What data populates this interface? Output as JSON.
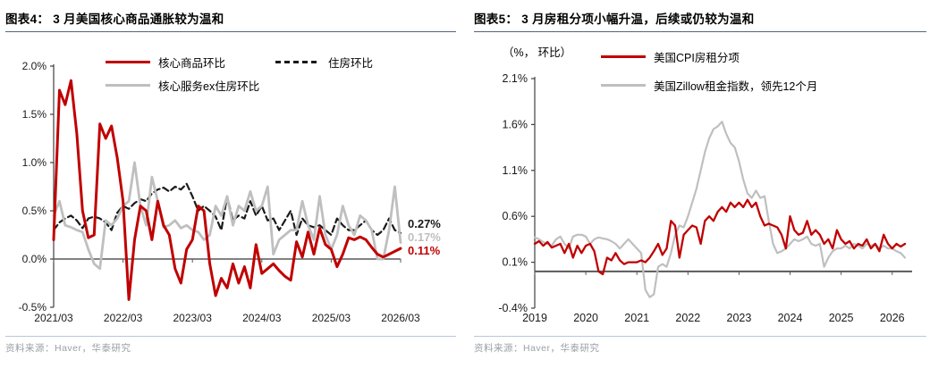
{
  "panels": [
    {
      "id": "fig4",
      "source": "资料来源：Haver，华泰研究"
    },
    {
      "id": "fig5",
      "source": "资料来源：Haver，华泰研究",
      "unit_label": "（%， 环比）"
    }
  ],
  "colors": {
    "series_red": "#c00000",
    "series_gray": "#bfbfbf",
    "series_black": "#1a1a1a",
    "title_rule": "#53677a",
    "source_rule": "#b7c7dc",
    "source_text": "#9aa0a6"
  },
  "chart_data": [
    {
      "id": "fig4",
      "type": "line",
      "title": "图表4： 3 月美国核心商品通胀较为温和",
      "x_start": "2021/03",
      "x_end": "2026/03",
      "freq": "monthly",
      "xticks": [
        "2021/03",
        "2022/03",
        "2023/03",
        "2024/03",
        "2025/03",
        "2026/03"
      ],
      "yticks": [
        "2.0%",
        "1.5%",
        "1.0%",
        "0.5%",
        "0.0%",
        "-0.5%"
      ],
      "ylim": [
        -0.5,
        2.0
      ],
      "legend_position": "top-inside",
      "grid": false,
      "series": [
        {
          "name": "住房环比",
          "color": "#1a1a1a",
          "dash": true,
          "width": 2.2,
          "end_label": "0.27%",
          "values": [
            0.3,
            0.38,
            0.42,
            0.45,
            0.4,
            0.32,
            0.42,
            0.44,
            0.42,
            0.38,
            0.3,
            0.48,
            0.55,
            0.52,
            0.58,
            0.62,
            0.6,
            0.68,
            0.72,
            0.74,
            0.7,
            0.75,
            0.72,
            0.78,
            0.65,
            0.5,
            0.55,
            0.5,
            0.44,
            0.3,
            0.65,
            0.4,
            0.45,
            0.42,
            0.6,
            0.45,
            0.55,
            0.4,
            0.42,
            0.3,
            0.4,
            0.5,
            0.25,
            0.42,
            0.35,
            0.33,
            0.35,
            0.3,
            0.25,
            0.42,
            0.35,
            0.3,
            0.3,
            0.35,
            0.4,
            0.3,
            0.25,
            0.3,
            0.42,
            0.3,
            0.27
          ]
        },
        {
          "name": "核心服务ex住房环比",
          "color": "#bfbfbf",
          "dash": false,
          "width": 2.8,
          "end_label": "0.17%",
          "values": [
            0.45,
            0.6,
            0.35,
            0.33,
            0.3,
            0.28,
            0.1,
            -0.05,
            -0.1,
            0.4,
            0.35,
            0.42,
            0.55,
            0.6,
            1.0,
            0.55,
            0.35,
            0.85,
            0.6,
            0.33,
            0.35,
            0.4,
            0.32,
            0.35,
            0.3,
            0.28,
            0.2,
            0.25,
            0.55,
            0.45,
            0.65,
            0.35,
            0.55,
            0.5,
            0.7,
            0.5,
            0.55,
            0.75,
            0.05,
            0.2,
            0.25,
            0.3,
            0.3,
            0.6,
            0.35,
            0.2,
            0.65,
            0.25,
            0.1,
            0.25,
            0.55,
            0.35,
            0.25,
            0.45,
            0.4,
            0.3,
            0.0,
            0.0,
            0.3,
            0.75,
            0.17
          ]
        },
        {
          "name": "核心商品环比",
          "color": "#c00000",
          "dash": false,
          "width": 3,
          "end_label": "0.11%",
          "values": [
            0.2,
            1.75,
            1.6,
            1.85,
            1.3,
            0.5,
            0.22,
            0.25,
            1.4,
            1.25,
            1.38,
            1.05,
            0.6,
            -0.42,
            0.2,
            0.55,
            0.5,
            0.2,
            0.6,
            0.35,
            0.25,
            -0.1,
            -0.25,
            0.1,
            0.2,
            0.55,
            0.5,
            -0.05,
            -0.38,
            -0.2,
            -0.3,
            -0.05,
            -0.25,
            -0.08,
            -0.3,
            0.15,
            -0.15,
            -0.1,
            -0.05,
            -0.12,
            -0.18,
            -0.22,
            0.18,
            0.02,
            0.28,
            0.05,
            0.32,
            0.15,
            0.1,
            -0.08,
            0.05,
            0.22,
            0.2,
            0.23,
            0.2,
            0.12,
            0.05,
            0.02,
            0.05,
            0.08,
            0.11
          ]
        }
      ]
    },
    {
      "id": "fig5",
      "type": "line",
      "title": "图表5： 3 月房租分项小幅升温，后续或仍较为温和",
      "unit": "（%， 环比）",
      "x_start": "2019/01",
      "x_end": "2026/04",
      "freq": "monthly",
      "xticks": [
        "2019",
        "2020",
        "2021",
        "2022",
        "2023",
        "2024",
        "2025",
        "2026"
      ],
      "yticks": [
        "2.1%",
        "1.6%",
        "1.1%",
        "0.6%",
        "0.1%",
        "-0.4%"
      ],
      "ylim": [
        -0.4,
        2.1
      ],
      "legend_position": "top-inside",
      "grid": false,
      "series": [
        {
          "name": "美国Zillow租金指数，领先12个月",
          "color": "#bfbfbf",
          "dash": false,
          "width": 2.2,
          "values": [
            0.37,
            0.35,
            0.32,
            0.3,
            0.28,
            0.35,
            0.38,
            0.3,
            0.25,
            0.38,
            0.4,
            0.4,
            0.38,
            0.3,
            0.35,
            0.37,
            0.36,
            0.35,
            0.33,
            0.3,
            0.25,
            0.3,
            0.35,
            0.3,
            0.25,
            0.2,
            -0.2,
            -0.28,
            -0.25,
            0.05,
            0.08,
            0.05,
            0.2,
            0.4,
            0.5,
            0.48,
            0.6,
            0.75,
            0.9,
            1.1,
            1.3,
            1.45,
            1.55,
            1.58,
            1.63,
            1.5,
            1.4,
            1.35,
            1.2,
            1.0,
            0.85,
            0.8,
            0.88,
            0.8,
            0.82,
            0.55,
            0.3,
            0.2,
            0.22,
            0.25,
            0.3,
            0.35,
            0.33,
            0.35,
            0.38,
            0.3,
            0.28,
            0.3,
            0.05,
            0.15,
            0.22,
            0.25,
            0.25,
            0.28,
            0.25,
            0.3,
            0.28,
            0.25,
            0.3,
            0.28,
            0.3,
            0.25,
            0.28,
            0.25,
            0.25,
            0.22,
            0.2,
            0.15
          ]
        },
        {
          "name": "美国CPI房租分项",
          "color": "#c00000",
          "dash": false,
          "width": 2.3,
          "values": [
            0.3,
            0.33,
            0.28,
            0.32,
            0.26,
            0.28,
            0.3,
            0.2,
            0.3,
            0.15,
            0.28,
            0.2,
            0.28,
            0.3,
            0.22,
            0.0,
            -0.03,
            0.15,
            0.12,
            0.2,
            0.12,
            0.08,
            0.1,
            0.1,
            0.1,
            0.12,
            0.1,
            0.15,
            0.22,
            0.3,
            0.18,
            0.25,
            0.55,
            0.5,
            0.15,
            0.4,
            0.45,
            0.5,
            0.48,
            0.3,
            0.55,
            0.6,
            0.55,
            0.65,
            0.7,
            0.65,
            0.75,
            0.7,
            0.75,
            0.7,
            0.78,
            0.7,
            0.75,
            0.6,
            0.5,
            0.52,
            0.5,
            0.48,
            0.4,
            0.25,
            0.6,
            0.45,
            0.4,
            0.42,
            0.55,
            0.4,
            0.45,
            0.4,
            0.3,
            0.35,
            0.25,
            0.45,
            0.35,
            0.3,
            0.33,
            0.25,
            0.3,
            0.28,
            0.35,
            0.25,
            0.3,
            0.22,
            0.4,
            0.3,
            0.25,
            0.3,
            0.27,
            0.3
          ]
        }
      ]
    }
  ]
}
